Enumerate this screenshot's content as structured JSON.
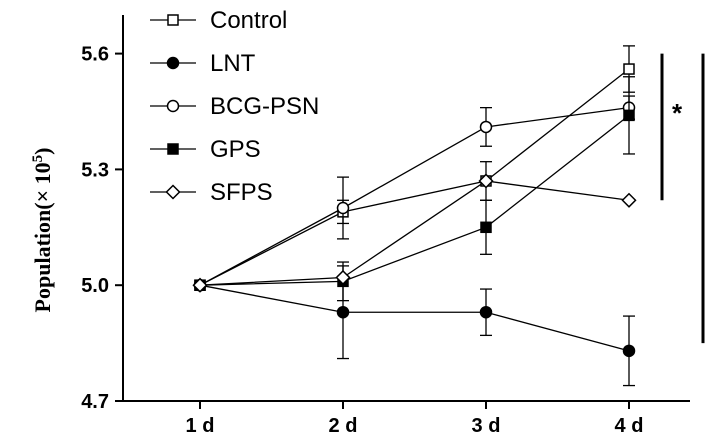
{
  "chart_data": {
    "type": "line",
    "ylabel": "Population(× 10",
    "ylabel_sup": "5",
    "ylabel_close": ")",
    "xlabel": "",
    "categories": [
      "1 d",
      "2 d",
      "3 d",
      "4 d"
    ],
    "ylim": [
      4.7,
      5.7
    ],
    "yticks": [
      "4.7",
      "5.0",
      "5.3",
      "5.6"
    ],
    "legend_position": "top-left",
    "series": [
      {
        "name": "Control",
        "marker": "open-square",
        "values": [
          5.0,
          5.19,
          5.27,
          5.56
        ],
        "errors": [
          0,
          0.03,
          0.05,
          0.06
        ]
      },
      {
        "name": "LNT",
        "marker": "filled-circle",
        "values": [
          5.0,
          4.93,
          4.93,
          4.83
        ],
        "errors": [
          0,
          0.12,
          0.06,
          0.09
        ]
      },
      {
        "name": "BCG-PSN",
        "marker": "open-circle",
        "values": [
          5.0,
          5.2,
          5.41,
          5.46
        ],
        "errors": [
          0,
          0.08,
          0.05,
          0.03
        ]
      },
      {
        "name": "GPS",
        "marker": "filled-square",
        "values": [
          5.0,
          5.01,
          5.15,
          5.44
        ],
        "errors": [
          0,
          0.05,
          0.07,
          0.1
        ]
      },
      {
        "name": "SFPS",
        "marker": "open-diamond",
        "values": [
          5.0,
          5.02,
          5.27,
          5.22
        ],
        "errors": [
          0,
          0,
          0,
          0
        ]
      }
    ],
    "annotations": [
      {
        "text": "*",
        "from": 5.22,
        "to": 5.6
      },
      {
        "text": "* *",
        "from": 4.85,
        "to": 5.6
      }
    ]
  }
}
